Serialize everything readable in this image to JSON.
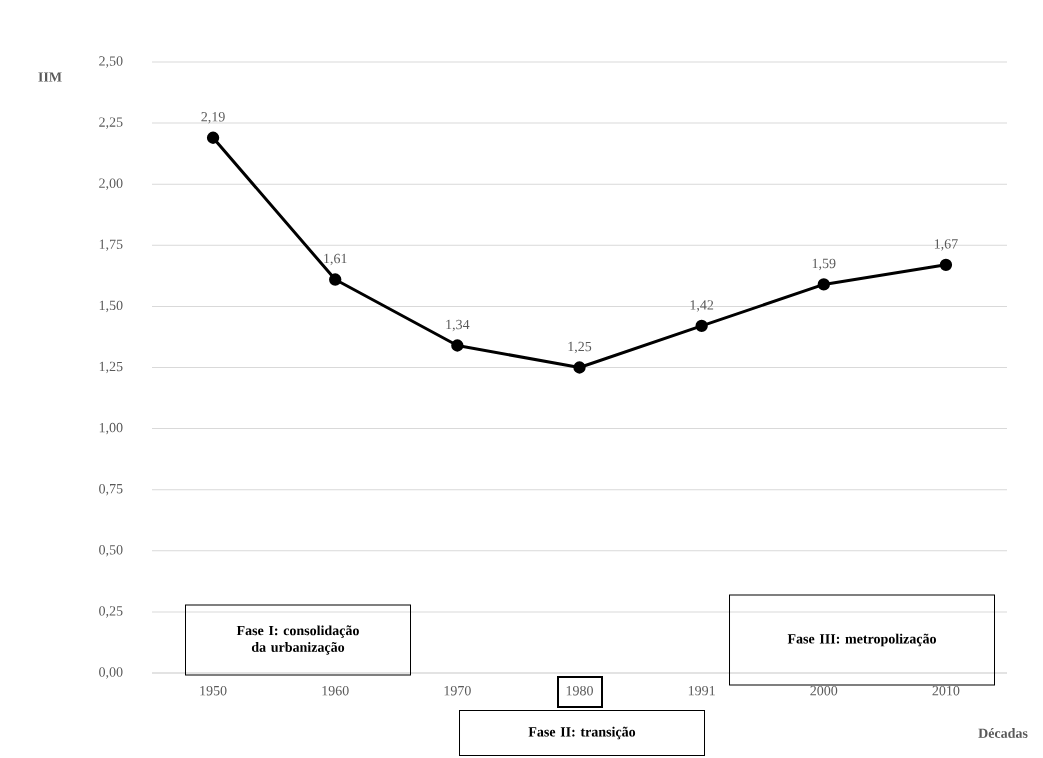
{
  "chart_data": {
    "type": "line",
    "xlabel": "Décadas",
    "ylabel": "IIM",
    "categories": [
      "1950",
      "1960",
      "1970",
      "1980",
      "1991",
      "2000",
      "2010"
    ],
    "series": [
      {
        "color": "#000000",
        "values": [
          2.19,
          1.61,
          1.34,
          1.25,
          1.42,
          1.59,
          1.67
        ],
        "value_labels": [
          "2,19",
          "1,61",
          "1,34",
          "1,25",
          "1,42",
          "1,59",
          "1,67"
        ]
      }
    ],
    "ylim": [
      0,
      2.5
    ],
    "yticks": [
      {
        "value": 0,
        "label": "0,00"
      },
      {
        "value": 0.25,
        "label": "0,25"
      },
      {
        "value": 0.5,
        "label": "0,50"
      },
      {
        "value": 0.75,
        "label": "0,75"
      },
      {
        "value": 1,
        "label": "1,00"
      },
      {
        "value": 1.25,
        "label": "1,25"
      },
      {
        "value": 1.5,
        "label": "1,50"
      },
      {
        "value": 1.75,
        "label": "1,75"
      },
      {
        "value": 2,
        "label": "2,00"
      },
      {
        "value": 2.25,
        "label": "2,25"
      },
      {
        "value": 2.5,
        "label": "2,50"
      }
    ],
    "grid": "y",
    "marker": "circle",
    "line_style": "solid",
    "annotations": [
      "Fase I: consolidação da urbanização",
      "Fase II: transição",
      "Fase III: metropolização"
    ]
  }
}
